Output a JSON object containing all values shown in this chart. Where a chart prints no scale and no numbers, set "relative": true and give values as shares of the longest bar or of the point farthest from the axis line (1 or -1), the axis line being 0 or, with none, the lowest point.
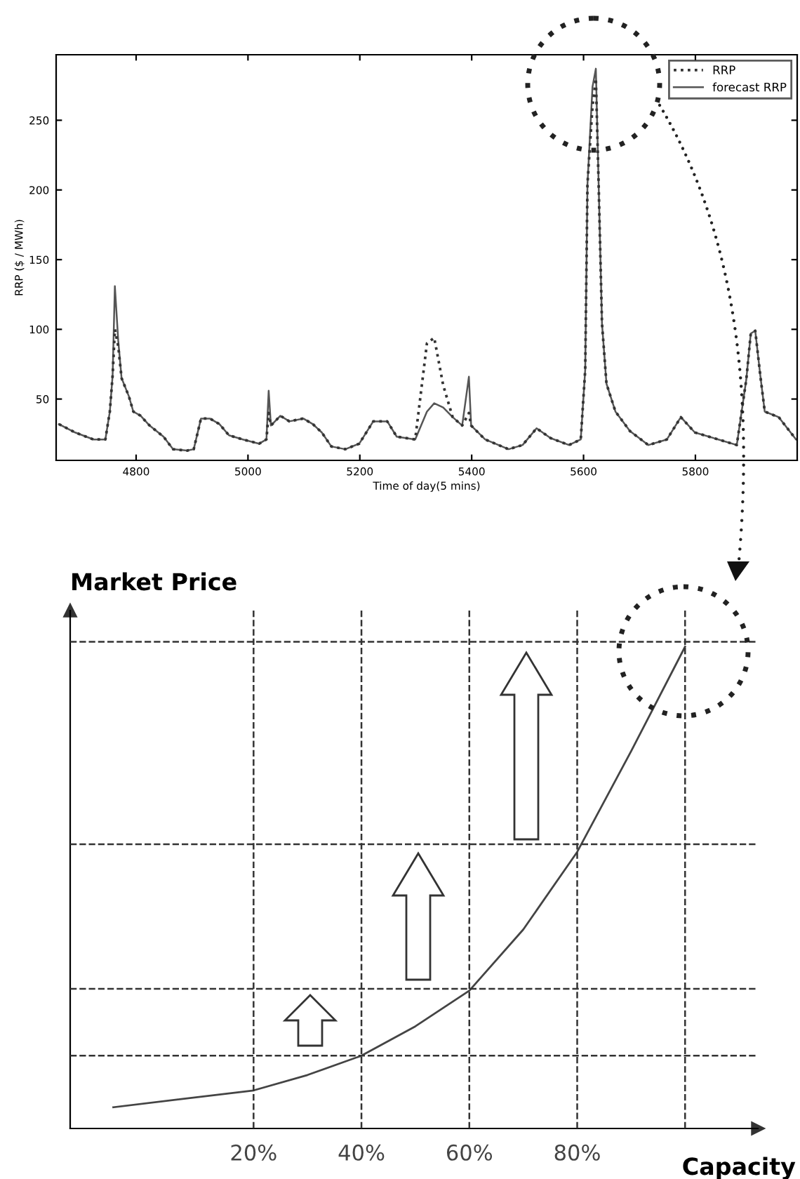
{
  "chart_data": [
    {
      "type": "line",
      "xlabel": "Time of day(5 mins)",
      "ylabel": "RRP ($ / MWh)",
      "x": [
        4662,
        4691,
        4724,
        4745,
        4753,
        4758,
        4762,
        4768,
        4774,
        4787,
        4795,
        4808,
        4824,
        4849,
        4866,
        4891,
        4903,
        4916,
        4932,
        4949,
        4966,
        4991,
        5020,
        5033,
        5037,
        5041,
        5058,
        5074,
        5099,
        5116,
        5132,
        5149,
        5174,
        5199,
        5224,
        5249,
        5266,
        5299,
        5320,
        5333,
        5349,
        5366,
        5383,
        5395,
        5399,
        5424,
        5466,
        5491,
        5516,
        5541,
        5574,
        5595,
        5603,
        5607,
        5616,
        5622,
        5627,
        5633,
        5641,
        5657,
        5683,
        5716,
        5749,
        5774,
        5799,
        5841,
        5874,
        5891,
        5899,
        5907,
        5916,
        5924,
        5949,
        5980
      ],
      "series": [
        {
          "name": "RRP",
          "color": "#333333",
          "line_style": "dotted",
          "values": [
            32,
            26,
            21,
            21,
            41,
            67,
            100,
            88,
            65,
            52,
            41,
            38,
            31,
            23,
            14,
            13,
            14,
            36,
            36,
            32,
            24,
            21,
            18,
            21,
            40,
            31,
            38,
            34,
            36,
            32,
            26,
            16,
            14,
            18,
            34,
            34,
            23,
            21,
            90,
            94,
            60,
            37,
            31,
            40,
            31,
            21,
            14,
            17,
            29,
            22,
            17,
            21,
            71,
            204,
            260,
            280,
            204,
            104,
            61,
            41,
            27,
            17,
            21,
            37,
            26,
            21,
            17,
            64,
            97,
            99,
            67,
            41,
            37,
            21
          ]
        },
        {
          "name": "forecast RRP",
          "color": "#555555",
          "line_style": "solid",
          "values": [
            32,
            26,
            21,
            21,
            41,
            67,
            131,
            92,
            65,
            52,
            41,
            38,
            31,
            23,
            14,
            13,
            14,
            36,
            36,
            32,
            24,
            21,
            18,
            21,
            56,
            31,
            38,
            34,
            36,
            32,
            26,
            16,
            14,
            18,
            34,
            34,
            23,
            21,
            41,
            47,
            44,
            37,
            31,
            66,
            31,
            21,
            14,
            17,
            29,
            22,
            17,
            21,
            71,
            204,
            274,
            287,
            204,
            104,
            61,
            41,
            27,
            17,
            21,
            37,
            26,
            21,
            17,
            64,
            97,
            99,
            67,
            41,
            37,
            21
          ]
        }
      ],
      "xlim": [
        4657,
        5982
      ],
      "ylim": [
        6,
        297
      ],
      "xticks": [
        4800,
        5000,
        5200,
        5400,
        5600,
        5800
      ],
      "yticks": [
        50,
        100,
        150,
        200,
        250
      ],
      "grid": false,
      "legend": "top right",
      "marker": "none"
    },
    {
      "type": "line",
      "relative": true,
      "xlabel": "Capacity",
      "ylabel": "Market Price",
      "x": [
        -6,
        20,
        30,
        40,
        50,
        60,
        70,
        80,
        90,
        100
      ],
      "series": [
        {
          "color": "#444444",
          "line_style": "solid",
          "values": [
            0.044,
            0.079,
            0.111,
            0.151,
            0.212,
            0.286,
            0.413,
            0.574,
            0.783,
            1
          ]
        }
      ],
      "xlim": [
        -14,
        113.5
      ],
      "xticks": [
        {
          "value": 20,
          "label": "20%"
        },
        {
          "value": 40,
          "label": "40%"
        },
        {
          "value": 60,
          "label": "60%"
        },
        {
          "value": 80,
          "label": "80%"
        }
      ],
      "ref_lines": [
        {
          "axis": "x",
          "value": 20,
          "line_style": "dashed"
        },
        {
          "axis": "x",
          "value": 40,
          "line_style": "dashed"
        },
        {
          "axis": "x",
          "value": 60,
          "line_style": "dashed"
        },
        {
          "axis": "x",
          "value": 80,
          "line_style": "dashed"
        },
        {
          "axis": "x",
          "value": 100,
          "line_style": "dashed"
        },
        {
          "axis": "y",
          "value": 0.151,
          "line_style": "dashed"
        },
        {
          "axis": "y",
          "value": 0.29,
          "line_style": "dashed"
        },
        {
          "axis": "y",
          "value": 0.59,
          "line_style": "dashed"
        },
        {
          "axis": "y",
          "value": 1.01,
          "line_style": "dashed"
        }
      ],
      "tick_labels": "x",
      "grid": false,
      "legend": false,
      "marker": "none"
    }
  ]
}
